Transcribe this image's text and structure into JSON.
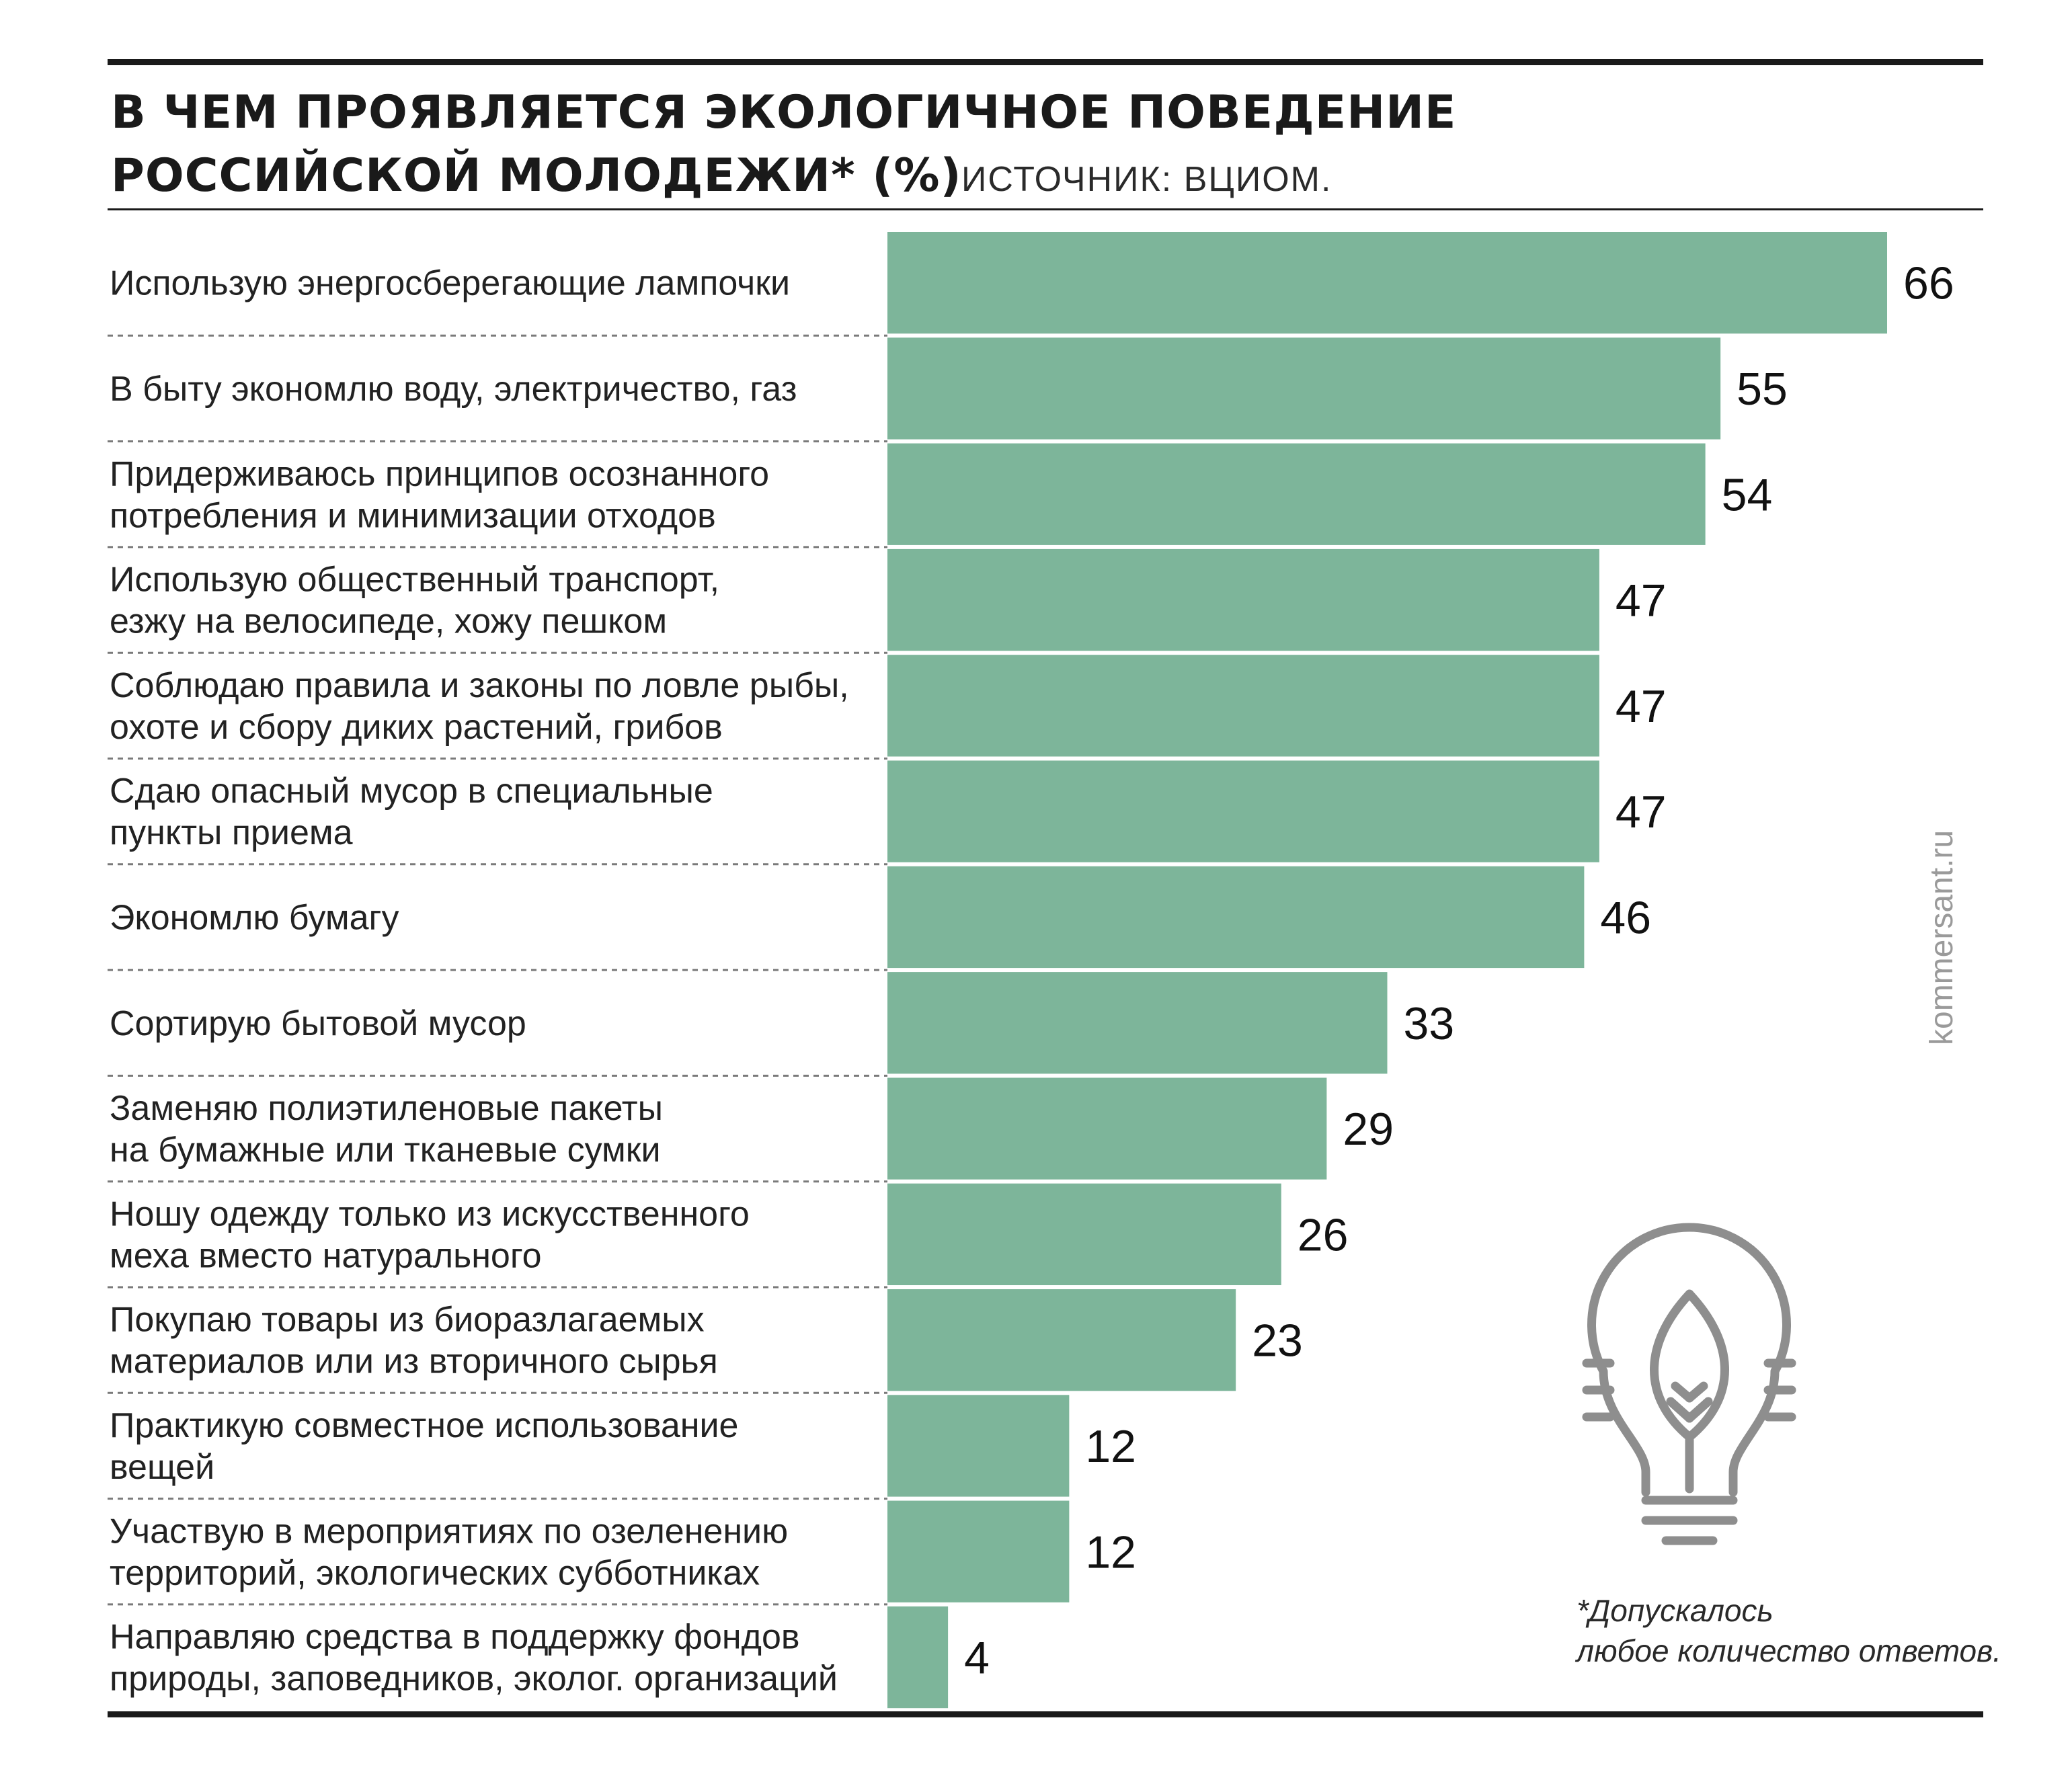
{
  "chart_data": {
    "type": "bar",
    "orientation": "horizontal",
    "title_lines": [
      "В ЧЕМ ПРОЯВЛЯЕТСЯ ЭКОЛОГИЧНОЕ ПОВЕДЕНИЕ",
      "РОССИЙСКОЙ МОЛОДЕЖИ* (%)"
    ],
    "source": "ИСТОЧНИК: ВЦИОМ.",
    "categories": [
      [
        "Использую энергосберегающие лампочки"
      ],
      [
        "В быту экономлю воду, электричество, газ"
      ],
      [
        "Придерживаюсь принципов осознанного",
        "потребления и минимизации отходов"
      ],
      [
        "Использую общественный транспорт,",
        "езжу на велосипеде, хожу пешком"
      ],
      [
        "Соблюдаю правила и законы по ловле рыбы,",
        "охоте и сбору диких растений, грибов"
      ],
      [
        "Сдаю опасный мусор в специальные",
        "пункты приема"
      ],
      [
        "Экономлю бумагу"
      ],
      [
        "Сортирую бытовой мусор"
      ],
      [
        "Заменяю полиэтиленовые пакеты",
        "на бумажные или тканевые сумки"
      ],
      [
        "Ношу одежду только из искусственного",
        "меха вместо натурального"
      ],
      [
        "Покупаю товары из биоразлагаемых",
        "материалов или из вторичного сырья"
      ],
      [
        "Практикую совместное использование",
        "вещей"
      ],
      [
        "Участвую в мероприятиях по озеленению",
        "территорий, экологических субботниках"
      ],
      [
        "Направляю средства в поддержку фондов",
        "природы, заповедников, эколог. организаций"
      ]
    ],
    "values": [
      66,
      55,
      54,
      47,
      47,
      47,
      46,
      33,
      29,
      26,
      23,
      12,
      12,
      4
    ],
    "xlim": [
      0,
      66
    ],
    "bar_color": "#7db59a",
    "footnote_lines": [
      "*Допускалось",
      "любое количество ответов."
    ],
    "watermark": "kommersant.ru",
    "icon": "lightbulb-leaf-icon"
  }
}
